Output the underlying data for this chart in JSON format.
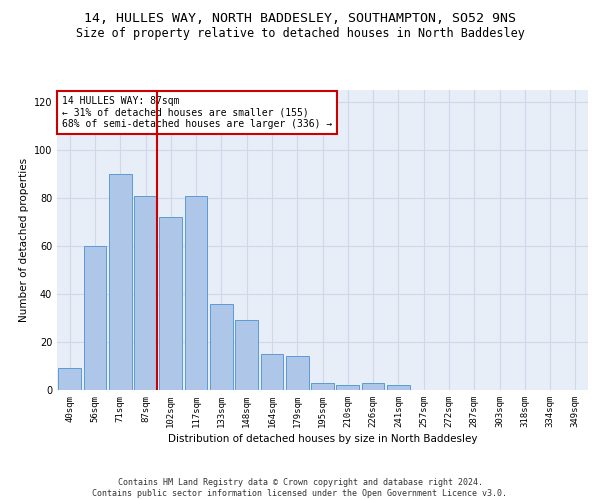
{
  "title": "14, HULLES WAY, NORTH BADDESLEY, SOUTHAMPTON, SO52 9NS",
  "subtitle": "Size of property relative to detached houses in North Baddesley",
  "xlabel": "Distribution of detached houses by size in North Baddesley",
  "ylabel": "Number of detached properties",
  "categories": [
    "40sqm",
    "56sqm",
    "71sqm",
    "87sqm",
    "102sqm",
    "117sqm",
    "133sqm",
    "148sqm",
    "164sqm",
    "179sqm",
    "195sqm",
    "210sqm",
    "226sqm",
    "241sqm",
    "257sqm",
    "272sqm",
    "287sqm",
    "303sqm",
    "318sqm",
    "334sqm",
    "349sqm"
  ],
  "values": [
    9,
    60,
    90,
    81,
    72,
    81,
    36,
    29,
    15,
    14,
    3,
    2,
    3,
    2,
    0,
    0,
    0,
    0,
    0,
    0,
    0
  ],
  "bar_color": "#aec6e8",
  "bar_edge_color": "#5b9bd5",
  "reference_line_index": 3,
  "reference_line_color": "#cc0000",
  "annotation_text": "14 HULLES WAY: 87sqm\n← 31% of detached houses are smaller (155)\n68% of semi-detached houses are larger (336) →",
  "annotation_box_color": "#ffffff",
  "annotation_box_edge_color": "#cc0000",
  "ylim": [
    0,
    125
  ],
  "yticks": [
    0,
    20,
    40,
    60,
    80,
    100,
    120
  ],
  "grid_color": "#d0d8e8",
  "background_color": "#e8eef8",
  "footer_text": "Contains HM Land Registry data © Crown copyright and database right 2024.\nContains public sector information licensed under the Open Government Licence v3.0.",
  "title_fontsize": 9.5,
  "subtitle_fontsize": 8.5,
  "axis_label_fontsize": 7.5,
  "tick_fontsize": 6.5,
  "annotation_fontsize": 7.0,
  "footer_fontsize": 6.0
}
